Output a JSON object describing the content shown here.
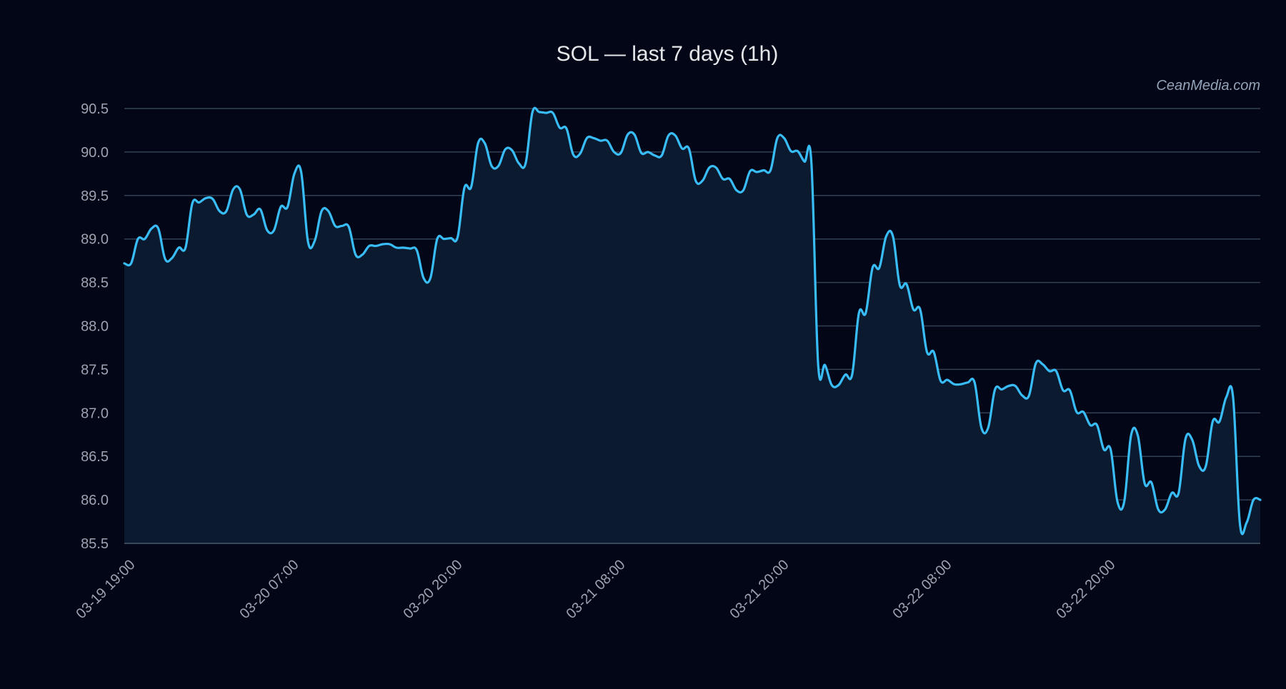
{
  "chart_data": {
    "type": "area",
    "title": "SOL — last 7 days (1h)",
    "watermark": "CeanMedia.com",
    "xlabel": "",
    "ylabel": "",
    "ylim": [
      85.5,
      90.5
    ],
    "yticks": [
      "85.5",
      "86.0",
      "86.5",
      "87.0",
      "87.5",
      "88.0",
      "88.5",
      "89.0",
      "89.5",
      "90.0",
      "90.5"
    ],
    "xtick_labels": [
      "03-19 19:00",
      "03-20 07:00",
      "03-20 20:00",
      "03-21 08:00",
      "03-21 20:00",
      "03-22 08:00",
      "03-22 20:00"
    ],
    "grid": true,
    "colors": {
      "background": "#020617",
      "line": "#38bdf8",
      "fill": "#0b1a2e",
      "grid": "#334155",
      "text": "#9ca3af"
    },
    "series": [
      {
        "points": [
          [
            0,
            88.72
          ],
          [
            5,
            88.72
          ],
          [
            10,
            89.0
          ],
          [
            15,
            89.0
          ],
          [
            20,
            89.12
          ],
          [
            25,
            89.12
          ],
          [
            30,
            88.77
          ],
          [
            35,
            88.78
          ],
          [
            40,
            88.9
          ],
          [
            45,
            88.9
          ],
          [
            50,
            89.41
          ],
          [
            55,
            89.42
          ],
          [
            60,
            89.47
          ],
          [
            65,
            89.46
          ],
          [
            70,
            89.32
          ],
          [
            75,
            89.32
          ],
          [
            80,
            89.57
          ],
          [
            85,
            89.57
          ],
          [
            90,
            89.28
          ],
          [
            95,
            89.28
          ],
          [
            100,
            89.34
          ],
          [
            105,
            89.1
          ],
          [
            110,
            89.1
          ],
          [
            115,
            89.37
          ],
          [
            120,
            89.37
          ],
          [
            125,
            89.75
          ],
          [
            130,
            89.77
          ],
          [
            135,
            88.97
          ],
          [
            140,
            88.98
          ],
          [
            145,
            89.32
          ],
          [
            150,
            89.32
          ],
          [
            155,
            89.15
          ],
          [
            160,
            89.15
          ],
          [
            165,
            89.14
          ],
          [
            170,
            88.82
          ],
          [
            175,
            88.82
          ],
          [
            180,
            88.92
          ],
          [
            185,
            88.92
          ],
          [
            190,
            88.94
          ],
          [
            195,
            88.94
          ],
          [
            200,
            88.9
          ],
          [
            205,
            88.9
          ],
          [
            210,
            88.89
          ],
          [
            215,
            88.87
          ],
          [
            220,
            88.55
          ],
          [
            225,
            88.55
          ],
          [
            230,
            89.0
          ],
          [
            235,
            89.0
          ],
          [
            240,
            89.01
          ],
          [
            245,
            89.02
          ],
          [
            250,
            89.59
          ],
          [
            255,
            89.6
          ],
          [
            260,
            90.1
          ],
          [
            265,
            90.1
          ],
          [
            270,
            89.84
          ],
          [
            275,
            89.84
          ],
          [
            280,
            90.03
          ],
          [
            285,
            90.02
          ],
          [
            290,
            89.87
          ],
          [
            295,
            89.87
          ],
          [
            300,
            90.46
          ],
          [
            305,
            90.46
          ],
          [
            310,
            90.45
          ],
          [
            315,
            90.45
          ],
          [
            320,
            90.28
          ],
          [
            325,
            90.27
          ],
          [
            330,
            89.97
          ],
          [
            335,
            89.98
          ],
          [
            340,
            90.16
          ],
          [
            345,
            90.16
          ],
          [
            350,
            90.13
          ],
          [
            355,
            90.13
          ],
          [
            360,
            90.0
          ],
          [
            365,
            89.99
          ],
          [
            370,
            90.2
          ],
          [
            375,
            90.2
          ],
          [
            380,
            89.99
          ],
          [
            385,
            90.0
          ],
          [
            390,
            89.96
          ],
          [
            395,
            89.96
          ],
          [
            400,
            90.19
          ],
          [
            405,
            90.19
          ],
          [
            410,
            90.04
          ],
          [
            415,
            90.04
          ],
          [
            420,
            89.67
          ],
          [
            425,
            89.67
          ],
          [
            430,
            89.82
          ],
          [
            435,
            89.82
          ],
          [
            440,
            89.69
          ],
          [
            445,
            89.69
          ],
          [
            450,
            89.56
          ],
          [
            455,
            89.56
          ],
          [
            460,
            89.78
          ],
          [
            465,
            89.77
          ],
          [
            470,
            89.79
          ],
          [
            475,
            89.79
          ],
          [
            480,
            90.16
          ],
          [
            485,
            90.16
          ],
          [
            490,
            90.01
          ],
          [
            495,
            90.01
          ],
          [
            500,
            89.89
          ],
          [
            505,
            89.89
          ],
          [
            510,
            87.56
          ],
          [
            515,
            87.55
          ],
          [
            520,
            87.32
          ],
          [
            525,
            87.32
          ],
          [
            530,
            87.44
          ],
          [
            535,
            87.44
          ],
          [
            540,
            88.15
          ],
          [
            545,
            88.15
          ],
          [
            550,
            88.67
          ],
          [
            555,
            88.67
          ],
          [
            560,
            89.03
          ],
          [
            565,
            89.03
          ],
          [
            570,
            88.47
          ],
          [
            575,
            88.48
          ],
          [
            580,
            88.19
          ],
          [
            585,
            88.19
          ],
          [
            590,
            87.7
          ],
          [
            595,
            87.7
          ],
          [
            600,
            87.37
          ],
          [
            605,
            87.38
          ],
          [
            610,
            87.33
          ],
          [
            615,
            87.33
          ],
          [
            620,
            87.35
          ],
          [
            625,
            87.35
          ],
          [
            630,
            86.83
          ],
          [
            635,
            86.83
          ],
          [
            640,
            87.27
          ],
          [
            645,
            87.27
          ],
          [
            650,
            87.31
          ],
          [
            655,
            87.31
          ],
          [
            660,
            87.2
          ],
          [
            665,
            87.2
          ],
          [
            670,
            87.57
          ],
          [
            675,
            87.56
          ],
          [
            680,
            87.48
          ],
          [
            685,
            87.48
          ],
          [
            690,
            87.26
          ],
          [
            695,
            87.26
          ],
          [
            700,
            87.01
          ],
          [
            705,
            87.01
          ],
          [
            710,
            86.86
          ],
          [
            715,
            86.86
          ],
          [
            720,
            86.58
          ],
          [
            725,
            86.58
          ],
          [
            730,
            85.98
          ],
          [
            735,
            85.98
          ],
          [
            740,
            86.74
          ],
          [
            745,
            86.74
          ],
          [
            750,
            86.19
          ],
          [
            755,
            86.2
          ],
          [
            760,
            85.89
          ],
          [
            765,
            85.89
          ],
          [
            770,
            86.08
          ],
          [
            775,
            86.08
          ],
          [
            780,
            86.7
          ],
          [
            785,
            86.69
          ],
          [
            790,
            86.39
          ],
          [
            795,
            86.39
          ],
          [
            800,
            86.9
          ],
          [
            805,
            86.9
          ],
          [
            810,
            87.18
          ],
          [
            815,
            87.18
          ],
          [
            820,
            85.73
          ],
          [
            825,
            85.74
          ],
          [
            830,
            86.0
          ],
          [
            835,
            86.0
          ]
        ]
      }
    ]
  }
}
